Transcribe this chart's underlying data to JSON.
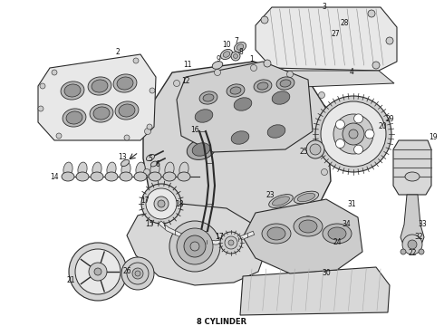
{
  "background_color": "#ffffff",
  "caption": "8 CYLINDER",
  "caption_fontsize": 6,
  "caption_fontweight": "bold",
  "fig_width": 4.9,
  "fig_height": 3.6,
  "dpi": 100,
  "line_color": "#2a2a2a",
  "component_fill": "#f0f0f0",
  "component_edge": "#2a2a2a",
  "light_fill": "#e8e8e8",
  "dark_fill": "#b0b0b0",
  "mid_fill": "#cccccc"
}
